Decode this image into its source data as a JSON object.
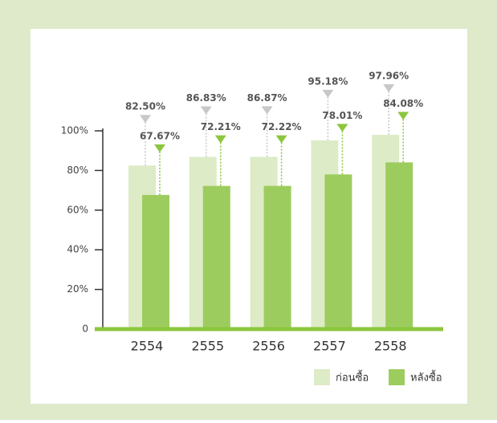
{
  "chart_data": {
    "type": "bar",
    "categories": [
      "2554",
      "2555",
      "2556",
      "2557",
      "2558"
    ],
    "series": [
      {
        "name": "ก่อนซื้อ",
        "color": "#ddebc6",
        "marker_color": "#c8c8c8",
        "values": [
          82.5,
          86.83,
          86.87,
          95.18,
          97.96
        ],
        "value_labels": [
          "82.50%",
          "86.83%",
          "86.87%",
          "95.18%",
          "97.96%"
        ]
      },
      {
        "name": "หลังซื้อ",
        "color": "#9dcc5e",
        "marker_color": "#8cc63f",
        "values": [
          67.67,
          72.21,
          72.22,
          78.01,
          84.08
        ],
        "value_labels": [
          "67.67%",
          "72.21%",
          "72.22%",
          "78.01%",
          "84.08%"
        ]
      }
    ],
    "ylim": [
      0,
      100
    ],
    "yticks": [
      0,
      {
        "value": 20,
        "label": "20%"
      },
      {
        "value": 40,
        "label": "40%"
      },
      {
        "value": 60,
        "label": "60%"
      },
      {
        "value": 80,
        "label": "80%"
      },
      {
        "value": 100,
        "label": "100%"
      }
    ],
    "legend": "bottom-right"
  }
}
